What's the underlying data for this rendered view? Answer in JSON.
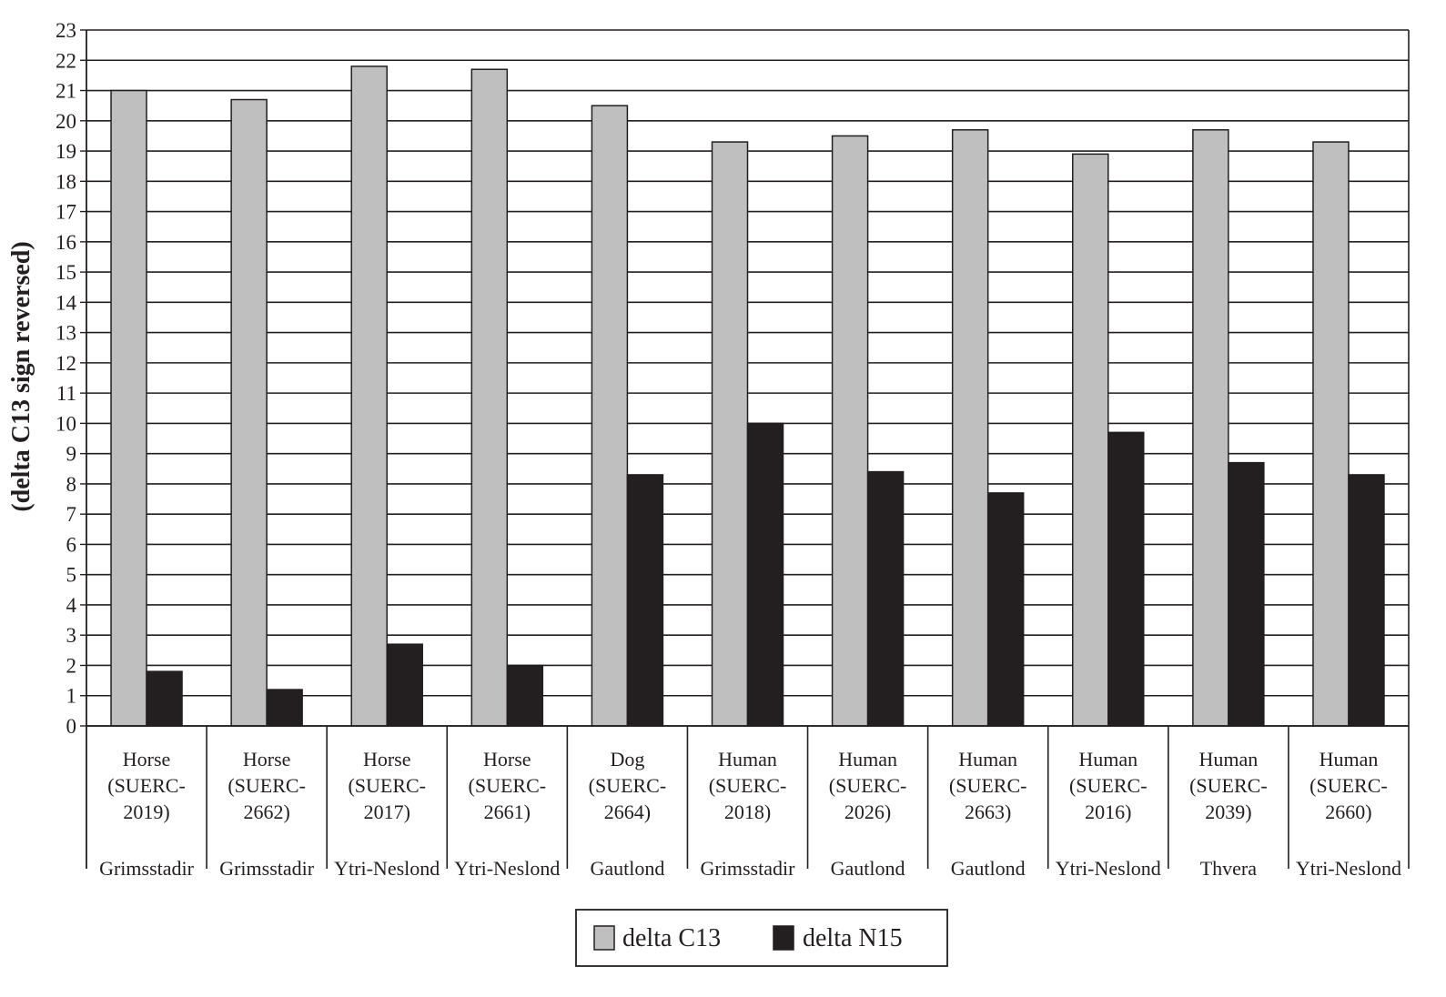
{
  "chart_data": {
    "type": "bar",
    "title": "",
    "xlabel": "",
    "ylabel": "(delta C13 sign reversed)",
    "ylim": [
      0,
      23
    ],
    "yticks": [
      0,
      1,
      2,
      3,
      4,
      5,
      6,
      7,
      8,
      9,
      10,
      11,
      12,
      13,
      14,
      15,
      16,
      17,
      18,
      19,
      20,
      21,
      22,
      23
    ],
    "grid": true,
    "legend_position": "bottom-center",
    "categories": [
      {
        "lines": [
          "Horse",
          "(SUERC-",
          "2019)"
        ],
        "site": "Grimsstadir"
      },
      {
        "lines": [
          "Horse",
          "(SUERC-",
          "2662)"
        ],
        "site": "Grimsstadir"
      },
      {
        "lines": [
          "Horse",
          "(SUERC-",
          "2017)"
        ],
        "site": "Ytri-Neslond"
      },
      {
        "lines": [
          "Horse",
          "(SUERC-",
          "2661)"
        ],
        "site": "Ytri-Neslond"
      },
      {
        "lines": [
          "Dog",
          "(SUERC-",
          "2664)"
        ],
        "site": "Gautlond"
      },
      {
        "lines": [
          "Human",
          "(SUERC-",
          "2018)"
        ],
        "site": "Grimsstadir"
      },
      {
        "lines": [
          "Human",
          "(SUERC-",
          "2026)"
        ],
        "site": "Gautlond"
      },
      {
        "lines": [
          "Human",
          "(SUERC-",
          "2663)"
        ],
        "site": "Gautlond"
      },
      {
        "lines": [
          "Human",
          "(SUERC-",
          "2016)"
        ],
        "site": "Ytri-Neslond"
      },
      {
        "lines": [
          "Human",
          "(SUERC-",
          "2039)"
        ],
        "site": "Thvera"
      },
      {
        "lines": [
          "Human",
          "(SUERC-",
          "2660)"
        ],
        "site": "Ytri-Neslond"
      }
    ],
    "series": [
      {
        "name": "delta C13",
        "color": "#bfbfbf",
        "values": [
          21.0,
          20.7,
          21.8,
          21.7,
          20.5,
          19.3,
          19.5,
          19.7,
          18.9,
          19.7,
          19.3
        ]
      },
      {
        "name": "delta N15",
        "color": "#231f20",
        "values": [
          1.8,
          1.2,
          2.7,
          2.0,
          8.3,
          10.0,
          8.4,
          7.7,
          9.7,
          8.7,
          8.3
        ]
      }
    ]
  }
}
